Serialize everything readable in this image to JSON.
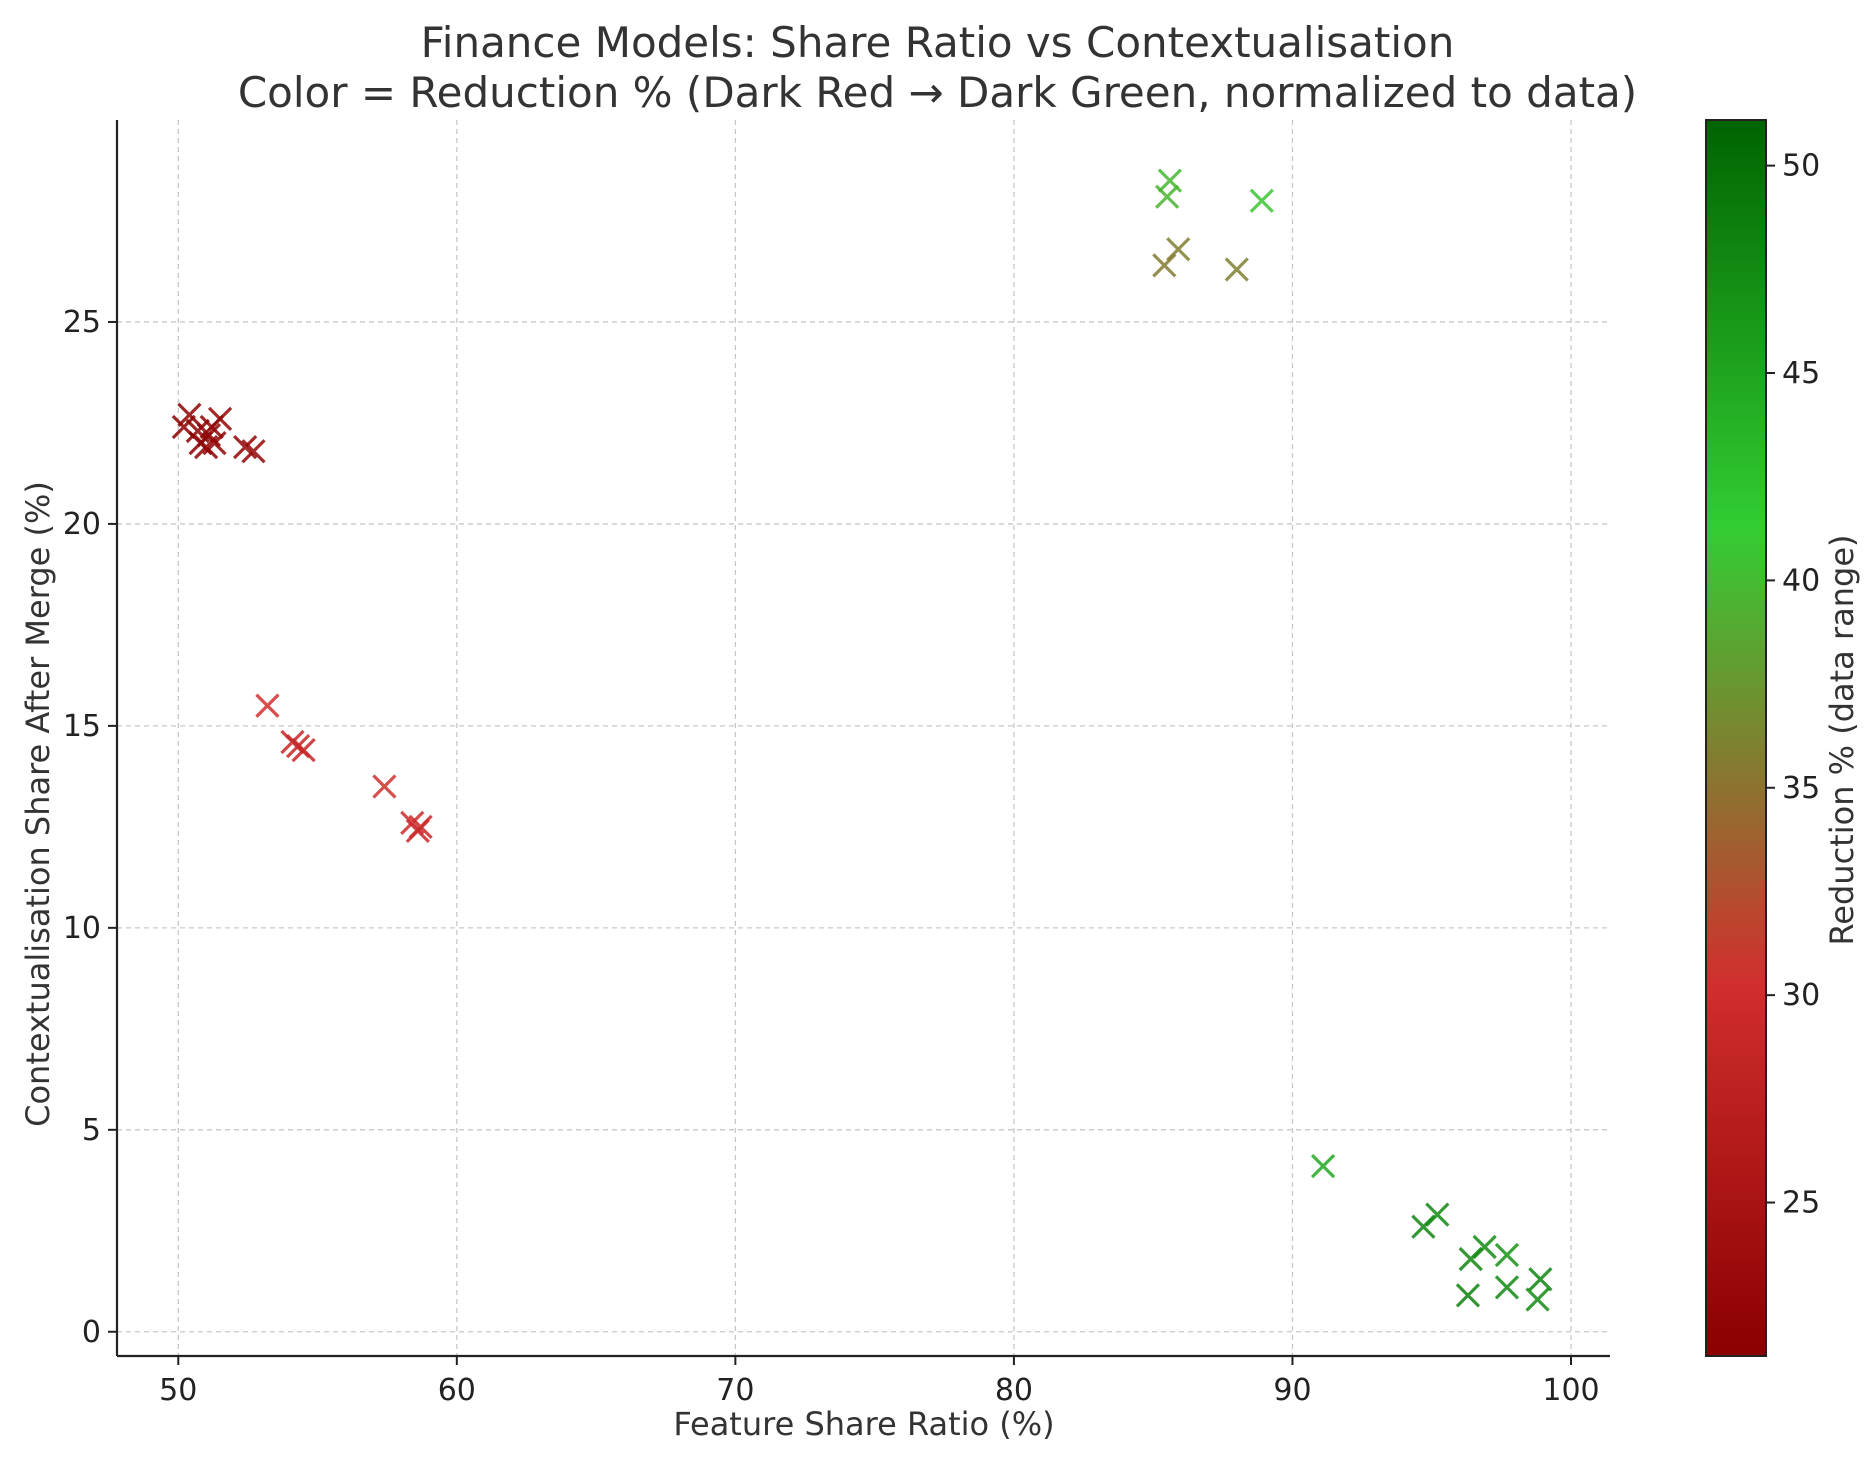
{
  "chart_data": {
    "type": "scatter",
    "title": "Finance Models: Share Ratio vs Contextualisation",
    "subtitle": "Color = Reduction % (Dark Red → Dark Green, normalized to data)",
    "xlabel": "Feature Share Ratio (%)",
    "ylabel": "Contextualisation Share After Merge (%)",
    "xlim": [
      47.8,
      101.4
    ],
    "ylim": [
      -0.6,
      30.0
    ],
    "xticks": [
      50,
      60,
      70,
      80,
      90,
      100
    ],
    "yticks": [
      0,
      5,
      10,
      15,
      20,
      25
    ],
    "grid": true,
    "marker": "x",
    "colorbar": {
      "label": "Reduction % (data range)",
      "range": [
        21.3,
        51.1
      ],
      "ticks": [
        25,
        30,
        35,
        40,
        45,
        50
      ],
      "colors": [
        "#8b0000",
        "#d22e2e",
        "#32cd32",
        "#006400"
      ],
      "stops": [
        0.0,
        0.3,
        0.67,
        1.0
      ]
    },
    "points": [
      {
        "x": 50.2,
        "y": 22.4,
        "c": 21.6
      },
      {
        "x": 50.4,
        "y": 22.7,
        "c": 21.8
      },
      {
        "x": 50.7,
        "y": 22.3,
        "c": 21.7
      },
      {
        "x": 50.8,
        "y": 22.0,
        "c": 21.5
      },
      {
        "x": 51.0,
        "y": 21.9,
        "c": 21.9
      },
      {
        "x": 51.1,
        "y": 22.2,
        "c": 22.0
      },
      {
        "x": 51.2,
        "y": 22.4,
        "c": 21.8
      },
      {
        "x": 51.3,
        "y": 22.0,
        "c": 22.1
      },
      {
        "x": 51.5,
        "y": 22.6,
        "c": 22.2
      },
      {
        "x": 52.4,
        "y": 21.9,
        "c": 22.5
      },
      {
        "x": 52.7,
        "y": 21.8,
        "c": 22.6
      },
      {
        "x": 53.2,
        "y": 15.5,
        "c": 30.2
      },
      {
        "x": 54.1,
        "y": 14.6,
        "c": 29.0
      },
      {
        "x": 54.3,
        "y": 14.5,
        "c": 28.8
      },
      {
        "x": 54.5,
        "y": 14.4,
        "c": 28.6
      },
      {
        "x": 57.4,
        "y": 13.5,
        "c": 30.5
      },
      {
        "x": 58.4,
        "y": 12.6,
        "c": 29.6
      },
      {
        "x": 58.6,
        "y": 12.4,
        "c": 29.3
      },
      {
        "x": 58.7,
        "y": 12.5,
        "c": 29.4
      },
      {
        "x": 85.6,
        "y": 28.5,
        "c": 39.8
      },
      {
        "x": 85.5,
        "y": 28.1,
        "c": 39.6
      },
      {
        "x": 88.9,
        "y": 28.0,
        "c": 40.8
      },
      {
        "x": 85.9,
        "y": 26.8,
        "c": 35.8
      },
      {
        "x": 85.4,
        "y": 26.4,
        "c": 35.6
      },
      {
        "x": 88.0,
        "y": 26.3,
        "c": 36.0
      },
      {
        "x": 91.1,
        "y": 4.1,
        "c": 44.8
      },
      {
        "x": 94.7,
        "y": 2.6,
        "c": 48.0
      },
      {
        "x": 95.2,
        "y": 2.9,
        "c": 47.5
      },
      {
        "x": 96.4,
        "y": 1.8,
        "c": 47.8
      },
      {
        "x": 96.9,
        "y": 2.1,
        "c": 47.3
      },
      {
        "x": 97.7,
        "y": 1.9,
        "c": 46.8
      },
      {
        "x": 96.3,
        "y": 0.9,
        "c": 48.2
      },
      {
        "x": 97.7,
        "y": 1.1,
        "c": 47.6
      },
      {
        "x": 98.9,
        "y": 1.3,
        "c": 47.9
      },
      {
        "x": 98.8,
        "y": 0.8,
        "c": 47.4
      }
    ]
  }
}
